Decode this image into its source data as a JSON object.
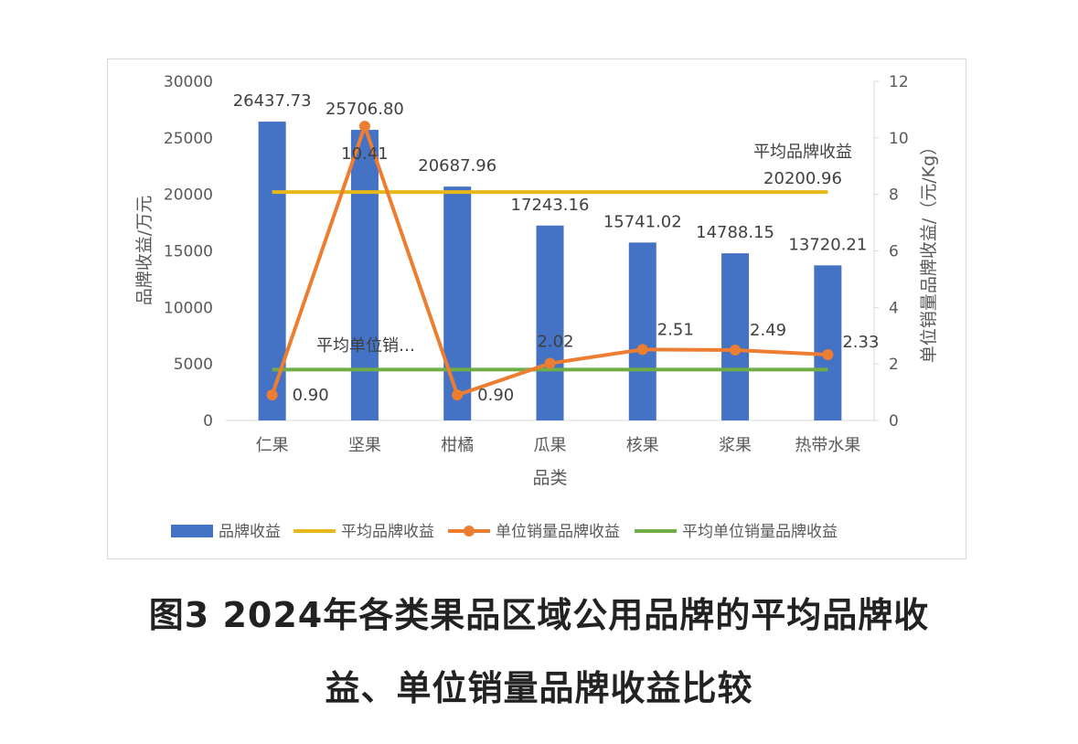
{
  "caption": {
    "line1": "图3 2024年各类果品区域公用品牌的平均品牌收",
    "line2": "益、单位销量品牌收益比较"
  },
  "chart_data": {
    "type": "bar",
    "categories": [
      "仁果",
      "坚果",
      "柑橘",
      "瓜果",
      "核果",
      "浆果",
      "热带水果"
    ],
    "xlabel": "品类",
    "ylabel": "品牌收益/万元",
    "y2label": "单位销量品牌收益/（元/Kg）",
    "ylim": [
      0,
      30000
    ],
    "yticks": [
      0,
      5000,
      10000,
      15000,
      20000,
      25000,
      30000
    ],
    "y2lim": [
      0,
      12
    ],
    "y2ticks": [
      0,
      2,
      4,
      6,
      8,
      10,
      12
    ],
    "grid": false,
    "legend_position": "bottom",
    "series": [
      {
        "name": "品牌收益",
        "kind": "bar",
        "axis": "left",
        "color": "#4472C4",
        "values": [
          26437.73,
          25706.8,
          20687.96,
          17243.16,
          15741.02,
          14788.15,
          13720.21
        ],
        "labels": [
          "26437.73",
          "25706.80",
          "20687.96",
          "17243.16",
          "15741.02",
          "14788.15",
          "13720.21"
        ]
      },
      {
        "name": "平均品牌收益",
        "kind": "hline",
        "axis": "left",
        "color": "#E8B81B",
        "value": 20200.96,
        "label_name": "平均品牌收益",
        "label_value": "20200.96"
      },
      {
        "name": "单位销量品牌收益",
        "kind": "line-markers",
        "axis": "right",
        "color": "#ED7D31",
        "values": [
          0.9,
          10.41,
          0.9,
          2.02,
          2.51,
          2.49,
          2.33
        ],
        "labels": [
          "0.90",
          "10.41",
          "0.90",
          "2.02",
          "2.51",
          "2.49",
          "2.33"
        ]
      },
      {
        "name": "平均单位销量品牌收益",
        "kind": "hline",
        "axis": "right",
        "color": "#70AD47",
        "value": 1.8,
        "label_name": "平均单位销…"
      }
    ]
  }
}
